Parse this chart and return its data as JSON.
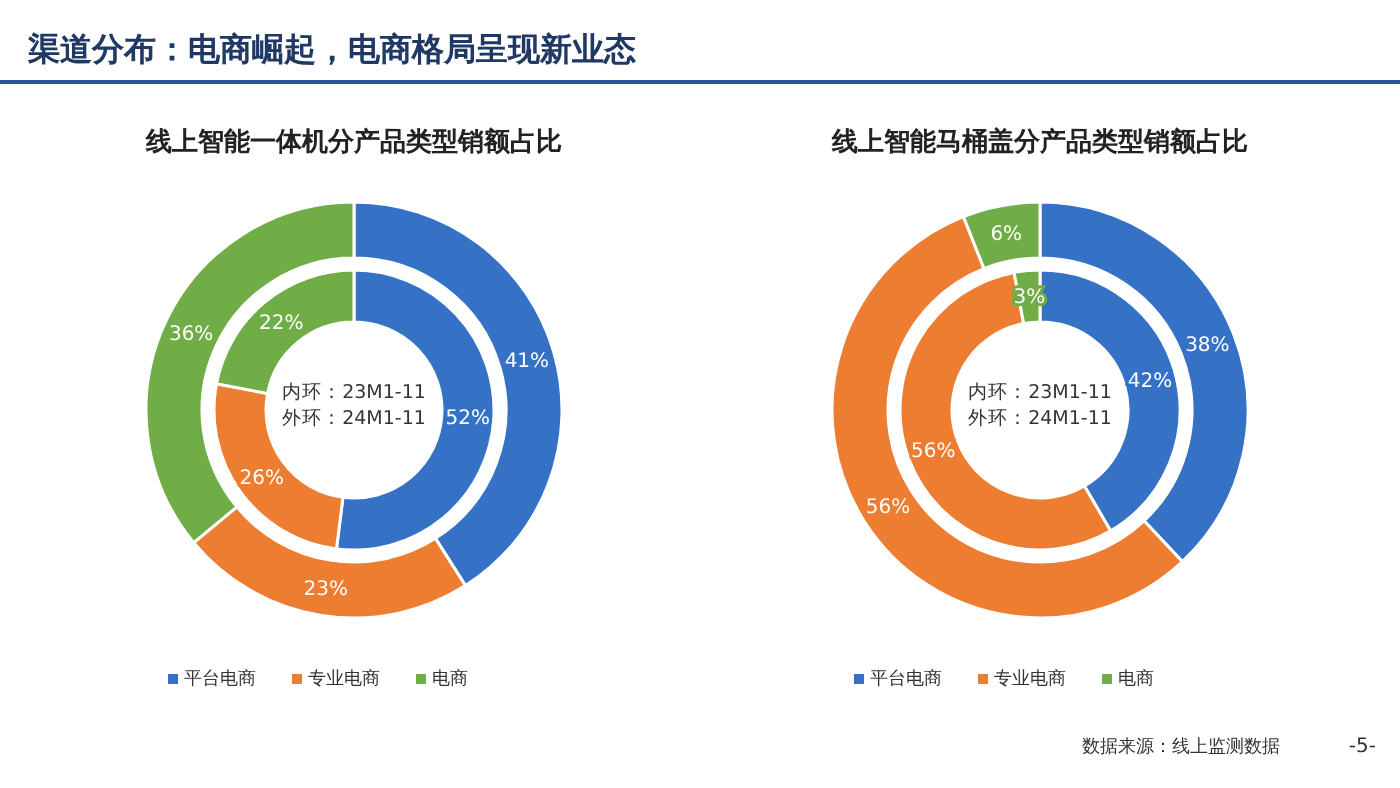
{
  "chart_data": [
    {
      "type": "donut",
      "title": "线上智能一体机分产品类型销额占比",
      "categories": [
        "平台电商",
        "专业电商",
        "电商"
      ],
      "colors": [
        "#3572c6",
        "#ed7d31",
        "#70ad47"
      ],
      "legend": "bottom",
      "annotations": [
        "内环：23M1-11",
        "外环：24M1-11",
        "渠道分布：电商崛起，电商格局呈现新业态"
      ],
      "series": [
        {
          "values": [
            52,
            26,
            22
          ],
          "value_labels": [
            "52%",
            "26%",
            "22%"
          ]
        },
        {
          "values": [
            41,
            23,
            36
          ],
          "value_labels": [
            "41%",
            "23%",
            "36%"
          ]
        }
      ]
    },
    {
      "type": "donut",
      "title": "线上智能马桶盖分产品类型销额占比",
      "categories": [
        "平台电商",
        "专业电商",
        "电商"
      ],
      "colors": [
        "#3572c6",
        "#ed7d31",
        "#70ad47"
      ],
      "legend": "bottom",
      "annotations": [
        "内环：23M1-11",
        "外环：24M1-11",
        "数据来源：线上监测数据",
        "-5-"
      ],
      "series": [
        {
          "values": [
            42,
            56,
            3
          ],
          "value_labels": [
            "42%",
            "56%",
            "3%"
          ]
        },
        {
          "values": [
            38,
            56,
            6
          ],
          "value_labels": [
            "38%",
            "56%",
            "6%"
          ]
        }
      ]
    }
  ]
}
